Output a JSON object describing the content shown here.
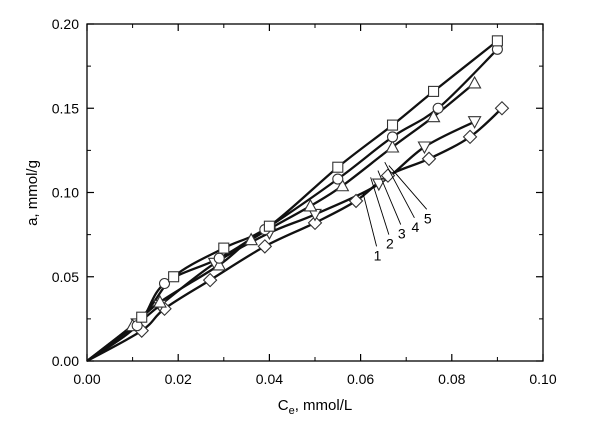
{
  "chart_data": {
    "type": "line",
    "title": "",
    "ylabel": "a, mmol/g",
    "xlabel": {
      "main": "C",
      "sub": "e",
      "rest": ", mmol/L"
    },
    "xlim": [
      0.0,
      0.1
    ],
    "ylim": [
      0.0,
      0.2
    ],
    "x_ticks": [
      "0.00",
      "0.02",
      "0.04",
      "0.06",
      "0.08",
      "0.10"
    ],
    "y_ticks": [
      "0.00",
      "0.05",
      "0.10",
      "0.15",
      "0.20"
    ],
    "grid": false,
    "legend": "none",
    "series": [
      {
        "name": "1",
        "marker": "diamond",
        "points": [
          [
            0.012,
            0.018
          ],
          [
            0.017,
            0.031
          ],
          [
            0.027,
            0.048
          ],
          [
            0.039,
            0.068
          ],
          [
            0.05,
            0.082
          ],
          [
            0.059,
            0.095
          ],
          [
            0.066,
            0.11
          ],
          [
            0.075,
            0.12
          ],
          [
            0.084,
            0.133
          ],
          [
            0.091,
            0.15
          ]
        ]
      },
      {
        "name": "2",
        "marker": "triangle-down",
        "points": [
          [
            0.011,
            0.022
          ],
          [
            0.016,
            0.033
          ],
          [
            0.028,
            0.058
          ],
          [
            0.04,
            0.076
          ],
          [
            0.05,
            0.087
          ],
          [
            0.064,
            0.105
          ],
          [
            0.074,
            0.127
          ],
          [
            0.085,
            0.142
          ]
        ]
      },
      {
        "name": "3",
        "marker": "triangle-up",
        "points": [
          [
            0.01,
            0.021
          ],
          [
            0.016,
            0.035
          ],
          [
            0.029,
            0.057
          ],
          [
            0.036,
            0.072
          ],
          [
            0.049,
            0.092
          ],
          [
            0.056,
            0.104
          ],
          [
            0.067,
            0.127
          ],
          [
            0.076,
            0.145
          ],
          [
            0.085,
            0.165
          ]
        ]
      },
      {
        "name": "4",
        "marker": "circle",
        "points": [
          [
            0.011,
            0.021
          ],
          [
            0.017,
            0.046
          ],
          [
            0.029,
            0.061
          ],
          [
            0.039,
            0.078
          ],
          [
            0.055,
            0.108
          ],
          [
            0.067,
            0.133
          ],
          [
            0.077,
            0.15
          ],
          [
            0.09,
            0.185
          ]
        ]
      },
      {
        "name": "5",
        "marker": "square",
        "points": [
          [
            0.012,
            0.026
          ],
          [
            0.019,
            0.05
          ],
          [
            0.03,
            0.067
          ],
          [
            0.04,
            0.08
          ],
          [
            0.055,
            0.115
          ],
          [
            0.067,
            0.14
          ],
          [
            0.076,
            0.16
          ],
          [
            0.09,
            0.19
          ]
        ]
      }
    ],
    "curve_labels": [
      {
        "series": "1",
        "text": "1",
        "line_start": [
          0.0605,
          0.1,
          1
        ],
        "line_end": [
          0.0635,
          0.068
        ]
      },
      {
        "series": "2",
        "text": "2",
        "line_start": [
          0.0622,
          0.109
        ],
        "line_end": [
          0.0662,
          0.075
        ]
      },
      {
        "series": "3",
        "text": "3",
        "line_start": [
          0.0638,
          0.113
        ],
        "line_end": [
          0.0688,
          0.081
        ]
      },
      {
        "series": "4",
        "text": "4",
        "line_start": [
          0.0653,
          0.118
        ],
        "line_end": [
          0.0718,
          0.085
        ]
      },
      {
        "series": "5",
        "text": "5",
        "line_start": [
          0.0662,
          0.116
        ],
        "line_end": [
          0.0745,
          0.09
        ]
      }
    ]
  }
}
